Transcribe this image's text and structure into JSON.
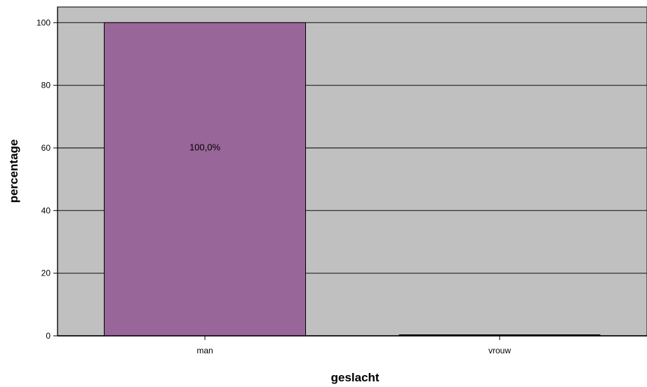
{
  "chart_data": {
    "type": "bar",
    "categories": [
      "man",
      "vrouw"
    ],
    "values": [
      100,
      0
    ],
    "data_labels": [
      "100,0%",
      ""
    ],
    "xlabel": "geslacht",
    "ylabel": "percentage",
    "ylim": [
      0,
      105
    ],
    "yticks": [
      0,
      20,
      40,
      60,
      80,
      100
    ],
    "grid": true,
    "colors": {
      "bar": "#996699",
      "plot_background": "#c0c0c0",
      "gridline": "#222222",
      "bar_border": "#000000"
    }
  }
}
